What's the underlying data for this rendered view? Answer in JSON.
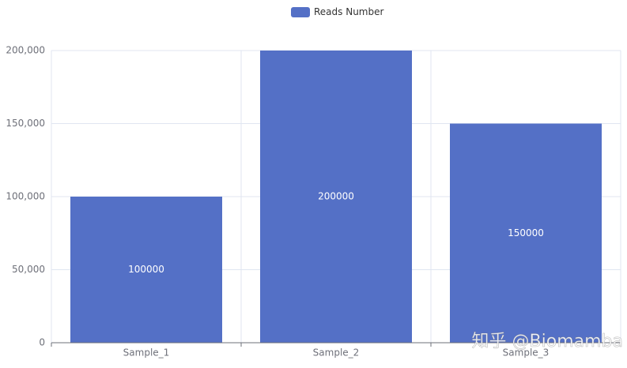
{
  "chart_data": {
    "type": "bar",
    "categories": [
      "Sample_1",
      "Sample_2",
      "Sample_3"
    ],
    "series": [
      {
        "name": "Reads Number",
        "color": "#5470c6",
        "values": [
          100000,
          200000,
          150000
        ]
      }
    ],
    "ylim": [
      0,
      200000
    ],
    "yticks": [
      0,
      {
        "value": 50000,
        "label": "50,000"
      },
      {
        "value": 100000,
        "label": "100,000"
      },
      {
        "value": 150000,
        "label": "150,000"
      },
      {
        "value": 200000,
        "label": "200,000"
      }
    ],
    "grid": true,
    "legend": "top"
  },
  "watermark": "知乎 @Biomamba"
}
